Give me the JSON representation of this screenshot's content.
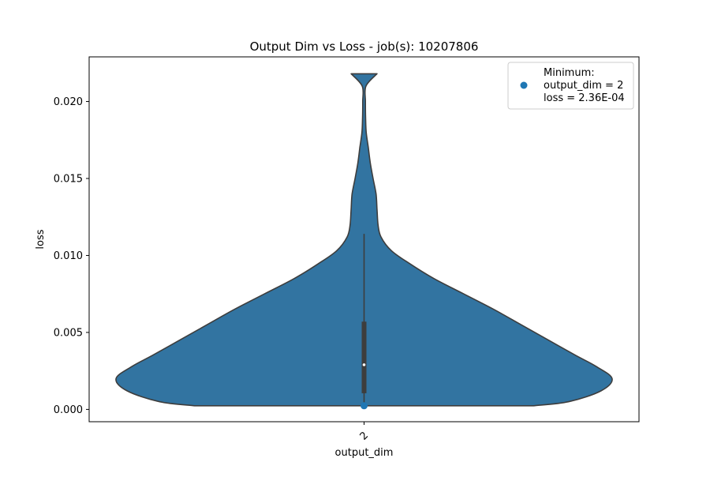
{
  "chart_data": {
    "type": "violin",
    "title": "Output Dim vs Loss - job(s): 10207806",
    "xlabel": "output_dim",
    "ylabel": "loss",
    "categories": [
      "2"
    ],
    "ylim": [
      -0.0008,
      0.0229
    ],
    "yticks": [
      0.0,
      0.005,
      0.01,
      0.015,
      0.02
    ],
    "ytick_labels": [
      "0.000",
      "0.005",
      "0.010",
      "0.015",
      "0.020"
    ],
    "grid": false,
    "violin": {
      "category": "2",
      "min": 0.000236,
      "max": 0.0218,
      "q1": 0.00105,
      "median": 0.0029,
      "q3": 0.0057,
      "whisker_low": 0.000236,
      "whisker_high": 0.0114,
      "density_profile": [
        [
          0.000236,
          0.68
        ],
        [
          0.0005,
          0.82
        ],
        [
          0.0012,
          0.95
        ],
        [
          0.002,
          0.995
        ],
        [
          0.0028,
          0.93
        ],
        [
          0.0035,
          0.85
        ],
        [
          0.0045,
          0.74
        ],
        [
          0.0055,
          0.63
        ],
        [
          0.0065,
          0.52
        ],
        [
          0.0075,
          0.4
        ],
        [
          0.0085,
          0.28
        ],
        [
          0.0095,
          0.18
        ],
        [
          0.0103,
          0.11
        ],
        [
          0.0112,
          0.068
        ],
        [
          0.012,
          0.056
        ],
        [
          0.013,
          0.052
        ],
        [
          0.014,
          0.048
        ],
        [
          0.015,
          0.036
        ],
        [
          0.016,
          0.025
        ],
        [
          0.017,
          0.017
        ],
        [
          0.018,
          0.0085
        ],
        [
          0.019,
          0.006
        ],
        [
          0.02,
          0.0055
        ],
        [
          0.021,
          0.0075
        ],
        [
          0.0218,
          0.052
        ]
      ],
      "color": "#3274a1",
      "edge_color": "#3d3d3d"
    },
    "minimum_point": {
      "x": "2",
      "y": 0.000236,
      "color": "#1f77b4"
    },
    "legend": {
      "position": "top-right",
      "lines": [
        "Minimum:",
        "output_dim = 2",
        "loss = 2.36E-04"
      ]
    }
  }
}
